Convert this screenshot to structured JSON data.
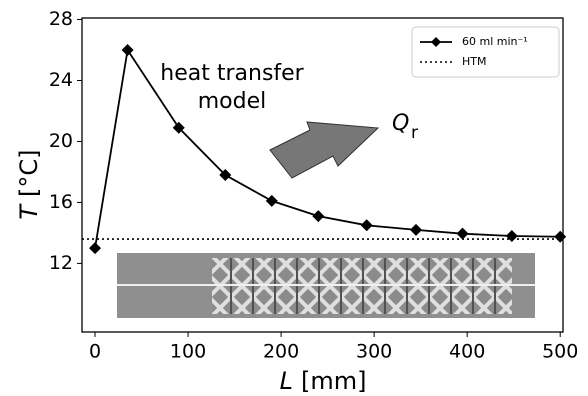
{
  "chart_data": {
    "type": "line",
    "x_label": {
      "symbol": "L",
      "unit": "[mm]"
    },
    "y_label": {
      "symbol": "T",
      "unit": "[°C]"
    },
    "annotations": {
      "model": [
        "heat transfer",
        "model"
      ],
      "flux": {
        "symbol": "Q",
        "subscript": "r"
      }
    },
    "x": [
      0,
      35,
      90,
      140,
      190,
      240,
      292,
      345,
      395,
      448,
      500
    ],
    "series": [
      {
        "name": "60 ml min⁻¹",
        "color": "#000000",
        "values": [
          13.0,
          26.0,
          20.9,
          17.8,
          16.1,
          15.1,
          14.5,
          14.2,
          13.95,
          13.8,
          13.75
        ]
      }
    ],
    "reference_line": {
      "name": "HTM",
      "value": 13.6,
      "color": "#000000"
    },
    "xlim": [
      -14,
      503
    ],
    "xticks": [
      0,
      100,
      200,
      300,
      400,
      500
    ],
    "ylim": [
      7.5,
      28.1
    ],
    "yticks": [
      12,
      16,
      20,
      24,
      28
    ],
    "legend": "upper right",
    "grid": false
  }
}
